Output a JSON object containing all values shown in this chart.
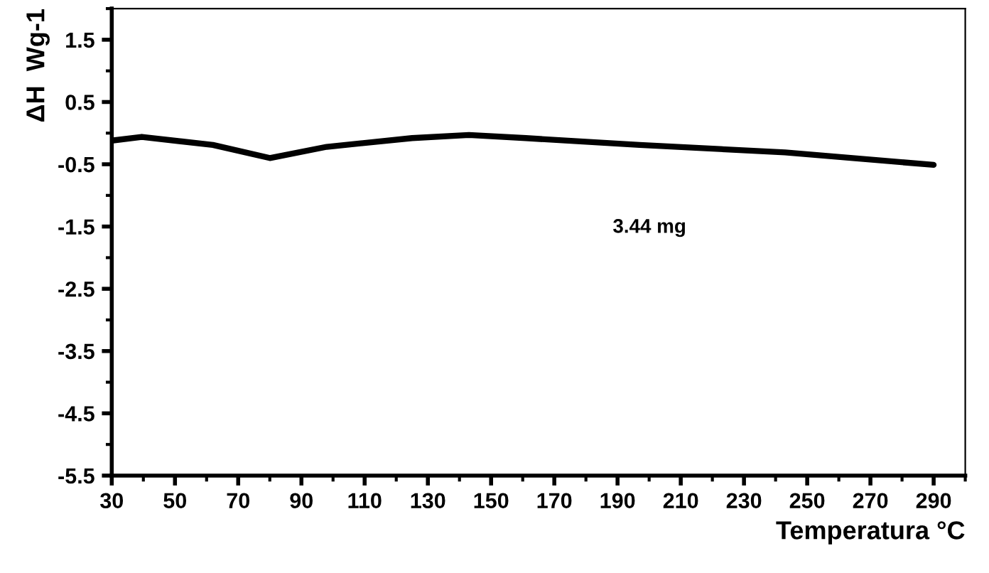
{
  "chart_data": {
    "type": "line",
    "xlabel": "Temperatura °C",
    "ylabel": "ΔH  Wg-1",
    "x": [
      30,
      39.5,
      62,
      80,
      98,
      125,
      143,
      161,
      197,
      243,
      290
    ],
    "series": [
      {
        "color": "#000000",
        "values": [
          -0.12,
          -0.06,
          -0.19,
          -0.4,
          -0.22,
          -0.08,
          -0.03,
          -0.08,
          -0.19,
          -0.31,
          -0.51
        ]
      }
    ],
    "xlim": [
      30,
      300
    ],
    "ylim": [
      -5.5,
      2.0
    ],
    "xticks": [
      30,
      50,
      70,
      90,
      110,
      130,
      150,
      170,
      190,
      210,
      230,
      250,
      270,
      290
    ],
    "yticks": [
      1.5,
      0.5,
      -0.5,
      -1.5,
      -2.5,
      -3.5,
      -4.5,
      -5.5
    ],
    "annotations": [
      "3.44 mg"
    ],
    "grid": false,
    "legend": false,
    "marker": "none",
    "line_style": "solid"
  }
}
